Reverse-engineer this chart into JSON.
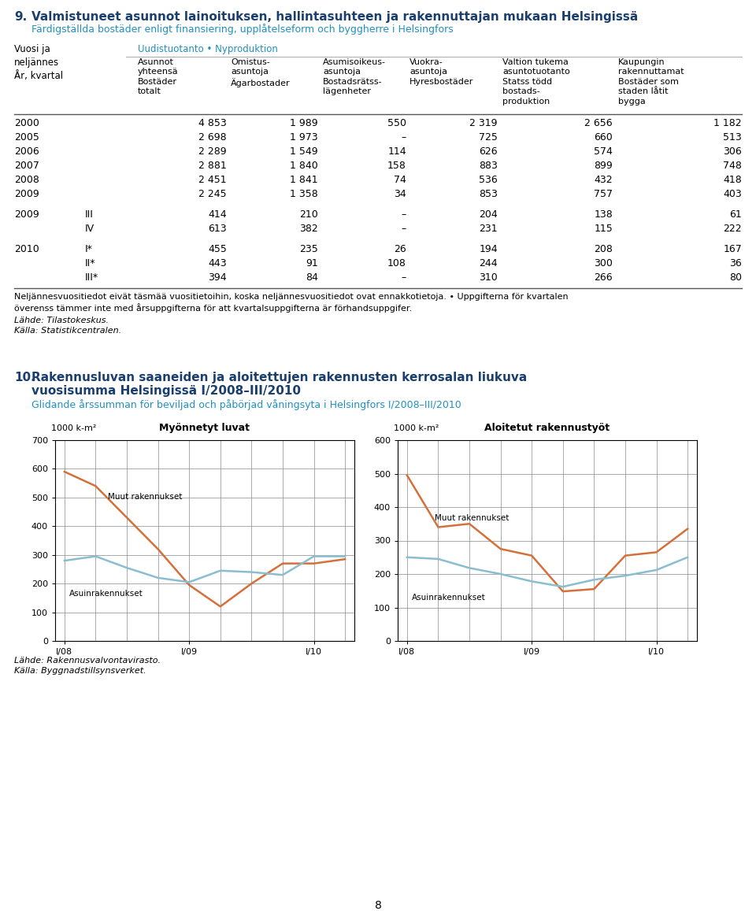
{
  "title_num": "9.",
  "title_main": "Valmistuneet asunnot lainoituksen, hallintasuhteen ja rakennuttajan mukaan Helsingissä",
  "title_sub": "Färdigställda bostäder enligt finansiering, upplåtelseform och byggherre i Helsingfors",
  "section_header": "Uudistuotanto • Nyproduktion",
  "rows": [
    [
      "2000",
      "",
      "4 853",
      "1 989",
      "550",
      "2 319",
      "2 656",
      "1 182"
    ],
    [
      "2005",
      "",
      "2 698",
      "1 973",
      "–",
      "725",
      "660",
      "513"
    ],
    [
      "2006",
      "",
      "2 289",
      "1 549",
      "114",
      "626",
      "574",
      "306"
    ],
    [
      "2007",
      "",
      "2 881",
      "1 840",
      "158",
      "883",
      "899",
      "748"
    ],
    [
      "2008",
      "",
      "2 451",
      "1 841",
      "74",
      "536",
      "432",
      "418"
    ],
    [
      "2009",
      "",
      "2 245",
      "1 358",
      "34",
      "853",
      "757",
      "403"
    ],
    [
      "2009",
      "III",
      "414",
      "210",
      "–",
      "204",
      "138",
      "61"
    ],
    [
      "",
      "IV",
      "613",
      "382",
      "–",
      "231",
      "115",
      "222"
    ],
    [
      "2010",
      "I*",
      "455",
      "235",
      "26",
      "194",
      "208",
      "167"
    ],
    [
      "",
      "II*",
      "443",
      "91",
      "108",
      "244",
      "300",
      "36"
    ],
    [
      "",
      "III*",
      "394",
      "84",
      "–",
      "310",
      "266",
      "80"
    ]
  ],
  "footnote1": "Neljännesvuositiedot eivät täsmää vuositietoihin, koska neljännesvuositiedot ovat ennakkotietoja. • Uppgifterna för kvartalen",
  "footnote2": "överenss tämmer inte med årsuppgifterna för att kvartalsuppgifterna är förhandsuppgifer.",
  "source1_fi": "Lähde: Tilastokeskus.",
  "source1_sv": "Källa: Statistikcentralen.",
  "section2_num": "10.",
  "section2_title": "Rakennusluvan saaneiden ja aloitettujen rakennusten kerrosalan liukuva",
  "section2_title2": "vuosisumma Helsingissä I/2008–III/2010",
  "section2_sub": "Glidande årssumman för beviljad och påbörjad våningsyta i Helsingfors I/2008–III/2010",
  "chart1_title": "Myönnetyt luvat",
  "chart1_ylabel": "1000 k-m²",
  "chart1_ylim": [
    0,
    700
  ],
  "chart1_yticks": [
    0,
    100,
    200,
    300,
    400,
    500,
    600,
    700
  ],
  "chart1_muut": [
    590,
    540,
    430,
    320,
    195,
    120,
    200,
    270,
    270,
    285
  ],
  "chart1_asuin": [
    280,
    295,
    255,
    220,
    205,
    245,
    240,
    230,
    295,
    295
  ],
  "chart2_title": "Aloitetut rakennustyöt",
  "chart2_ylabel": "1000 k-m²",
  "chart2_ylim": [
    0,
    600
  ],
  "chart2_yticks": [
    0,
    100,
    200,
    300,
    400,
    500,
    600
  ],
  "chart2_muut": [
    495,
    340,
    350,
    275,
    255,
    148,
    155,
    255,
    265,
    335
  ],
  "chart2_asuin": [
    250,
    245,
    218,
    200,
    178,
    162,
    183,
    195,
    212,
    250
  ],
  "color_orange": "#D4703A",
  "color_blue_light": "#8BBDD0",
  "color_title_dark": "#1A3F6F",
  "color_title_cyan": "#2090C0",
  "source2_fi": "Lähde: Rakennusvalvontavirasto.",
  "source2_sv": "Källa: Byggnadstillsynsverket.",
  "page_num": "8",
  "bg_color": "#FFFFFF",
  "line_color": "#555555",
  "grid_color": "#888888"
}
